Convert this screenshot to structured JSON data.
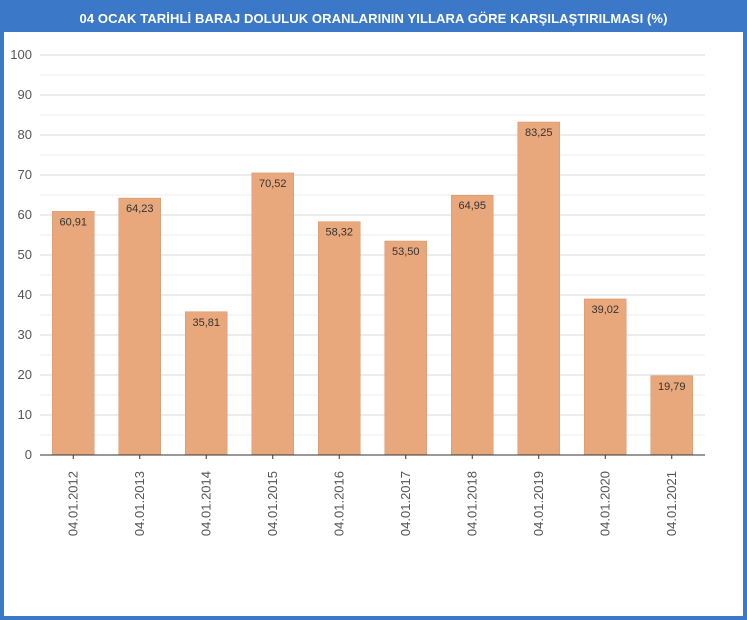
{
  "title": "04 OCAK TARİHLİ BARAJ DOLULUK ORANLARININ YILLARA GÖRE KARŞILAŞTIRILMASI (%)",
  "colors": {
    "frame": "#3b78c8",
    "bar": "#e8a87c",
    "bar_stroke": "#d4926a",
    "grid": "#d9d9d9",
    "axis": "#333333"
  },
  "chart_data": {
    "type": "bar",
    "categories": [
      "04.01.2012",
      "04.01.2013",
      "04.01.2014",
      "04.01.2015",
      "04.01.2016",
      "04.01.2017",
      "04.01.2018",
      "04.01.2019",
      "04.01.2020",
      "04.01.2021"
    ],
    "values": [
      60.91,
      64.23,
      35.81,
      70.52,
      58.32,
      53.5,
      64.95,
      83.25,
      39.02,
      19.79
    ],
    "data_labels": [
      "60,91",
      "64,23",
      "35,81",
      "70,52",
      "58,32",
      "53,50",
      "64,95",
      "83,25",
      "39,02",
      "19,79"
    ],
    "y_ticks": [
      0,
      10,
      20,
      30,
      40,
      50,
      60,
      70,
      80,
      90,
      100
    ],
    "ylim": [
      0,
      100
    ],
    "grid": true,
    "legend": "none"
  }
}
